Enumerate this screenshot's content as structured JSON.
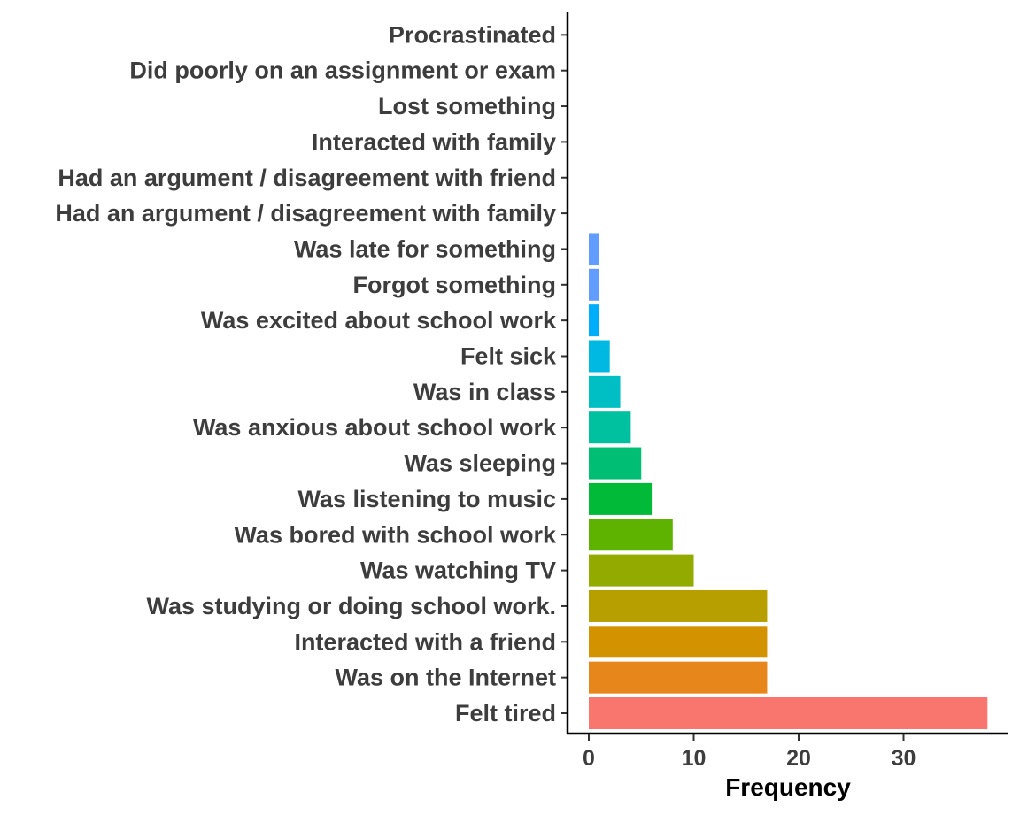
{
  "chart_data": {
    "type": "bar",
    "orientation": "horizontal",
    "title": "",
    "xlabel": "Frequency",
    "ylabel": "",
    "xlim": [
      -1.5,
      40.0
    ],
    "xticks": [
      0,
      10,
      20,
      30
    ],
    "grid": false,
    "legend": "none",
    "categories": [
      "Felt tired",
      "Was on the Internet",
      "Interacted with a friend",
      "Was studying or doing school work.",
      "Was watching TV",
      "Was bored with school work",
      "Was listening to music",
      "Was sleeping",
      "Was anxious about school work",
      "Was in class",
      "Felt sick",
      "Was excited about school work",
      "Forgot something",
      "Was late for something",
      "Had an argument / disagreement with family",
      "Had an argument / disagreement with friend",
      "Interacted with family",
      "Lost something",
      "Did poorly on an assignment or exam",
      "Procrastinated"
    ],
    "values": [
      38,
      17,
      17,
      17,
      10,
      8,
      6,
      5,
      4,
      3,
      2,
      1,
      1,
      1,
      0,
      0,
      0,
      0,
      0,
      0
    ],
    "colors": [
      "#F8766D",
      "#E7861B",
      "#D39200",
      "#B79F00",
      "#93AA00",
      "#5EB300",
      "#00BA38",
      "#00BF74",
      "#00C19F",
      "#00BFC4",
      "#00B9E3",
      "#00ADFA",
      "#619CFF",
      "#619CFF",
      "#DB72FB",
      "#F564E3",
      "#FF61C3",
      "#FF61C3",
      "#FF61C3",
      "#FF61C3"
    ]
  }
}
